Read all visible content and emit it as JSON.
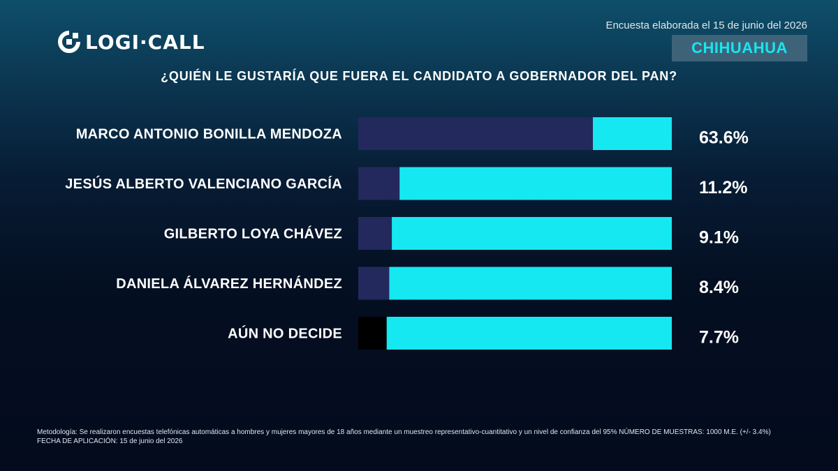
{
  "brand": {
    "name": "LOGI·CALL"
  },
  "header": {
    "survey_date": "Encuesta elaborada el 15 de junio del 2026",
    "state": "CHIHUAHUA",
    "question": "¿QUIÉN LE GUSTARÍA QUE FUERA EL CANDIDATO A GOBERNADOR DEL PAN?"
  },
  "colors": {
    "accent": "#16e8f2",
    "bar_dark": "#23295c",
    "bar_black": "#000000"
  },
  "chart_data": {
    "type": "bar",
    "orientation": "horizontal",
    "categories": [
      "MARCO ANTONIO BONILLA MENDOZA",
      "JESÚS ALBERTO VALENCIANO GARCÍA",
      "GILBERTO LOYA CHÁVEZ",
      "DANIELA ÁLVAREZ HERNÁNDEZ",
      "AÚN NO DECIDE"
    ],
    "values": [
      63.6,
      11.2,
      9.1,
      8.4,
      7.7
    ],
    "value_labels": [
      "63.6%",
      "11.2%",
      "9.1%",
      "8.4%",
      "7.7%"
    ],
    "segment_colors": [
      "#23295c",
      "#23295c",
      "#23295c",
      "#23295c",
      "#000000"
    ],
    "xlim": [
      0,
      85
    ],
    "unit": "%",
    "grid": false,
    "legend": "none"
  },
  "footer": {
    "methodology": "Metodología: Se realizaron encuestas telefónicas automáticas a hombres y mujeres mayores de 18 años mediante un muestreo representativo-cuantitativo y un nivel de confianza del 95% NÚMERO DE MUESTRAS: 1000 M.E. (+/- 3.4%)",
    "application_date": "FECHA DE APLICACIÓN: 15 de junio del 2026"
  }
}
